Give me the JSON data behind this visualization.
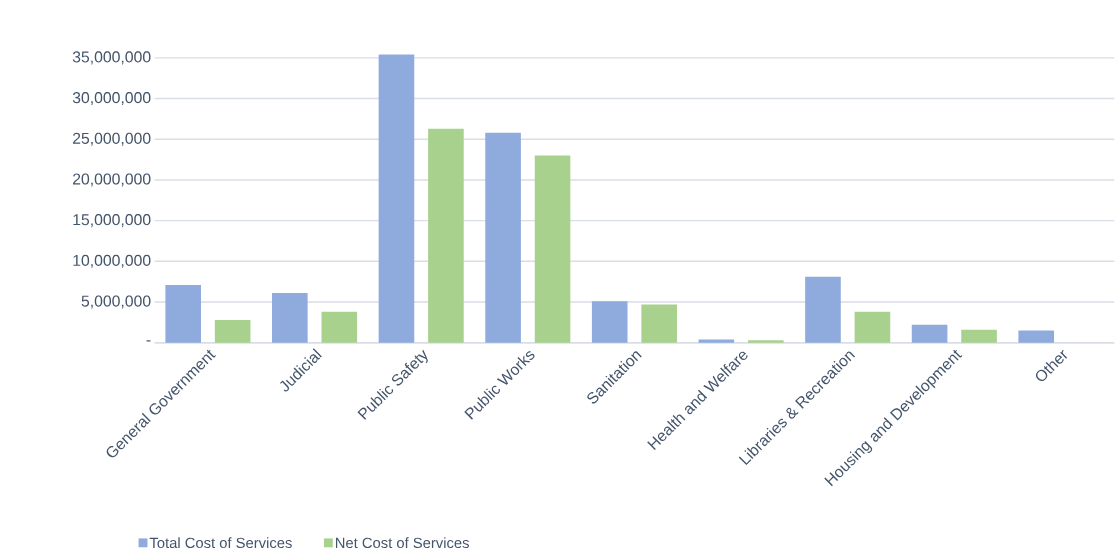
{
  "chart_data": {
    "type": "bar",
    "categories": [
      "General Government",
      "Judicial",
      "Public Safety",
      "Public Works",
      "Sanitation",
      "Health and Welfare",
      "Libraries & Recreation",
      "Housing and Development",
      "Other"
    ],
    "series": [
      {
        "name": "Total Cost of Services",
        "color": "#8faadc",
        "values": [
          7100000,
          6100000,
          35400000,
          25800000,
          5100000,
          400000,
          8100000,
          2200000,
          1500000
        ]
      },
      {
        "name": "Net Cost of Services",
        "color": "#a9d18e",
        "values": [
          2800000,
          3800000,
          26300000,
          23000000,
          4700000,
          300000,
          3800000,
          1600000,
          null
        ]
      }
    ],
    "ylim": [
      0,
      35500000
    ],
    "yticks": [
      {
        "value": 0,
        "label": "-"
      },
      {
        "value": 5000000,
        "label": "5,000,000"
      },
      {
        "value": 10000000,
        "label": "10,000,000"
      },
      {
        "value": 15000000,
        "label": "15,000,000"
      },
      {
        "value": 20000000,
        "label": "20,000,000"
      },
      {
        "value": 25000000,
        "label": "25,000,000"
      },
      {
        "value": 30000000,
        "label": "30,000,000"
      },
      {
        "value": 35000000,
        "label": "35,000,000"
      }
    ],
    "grid": "y",
    "legend": "bottom"
  }
}
